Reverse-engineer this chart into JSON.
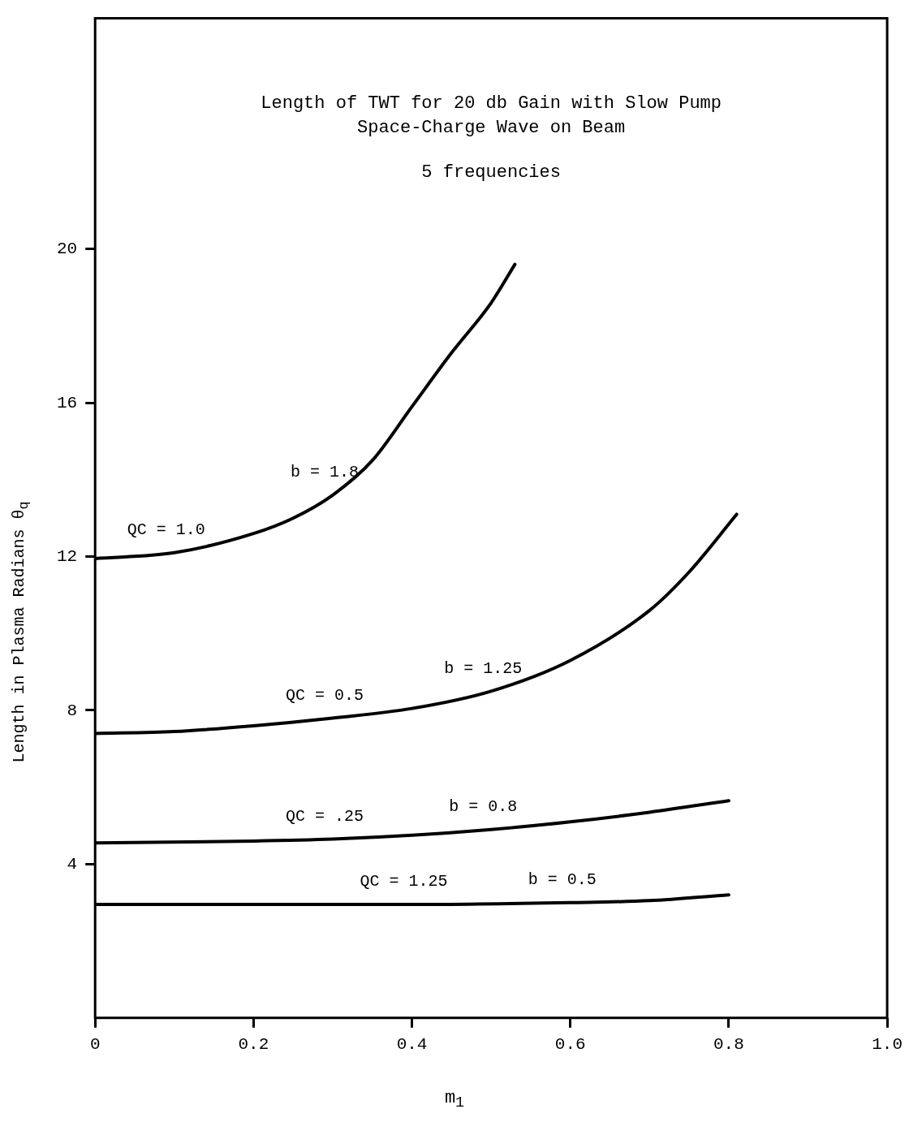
{
  "chart_data": {
    "type": "line",
    "title": "Length of TWT for 20 db Gain with Slow Pump\nSpace-Charge Wave on Beam",
    "subtitle": "5 frequencies",
    "xlabel": "m$_{1}$",
    "ylabel": "Length in Plasma Radians θ$_{q}$",
    "xlim": [
      0,
      1.0
    ],
    "xticks": [
      {
        "value": 0,
        "label": "0"
      },
      0.2,
      0.4,
      0.6,
      0.8,
      {
        "value": 1,
        "label": "1.0"
      }
    ],
    "ylim": [
      0,
      26
    ],
    "yticks": [
      4,
      8,
      12,
      16,
      20
    ],
    "marker": "none",
    "line_style": "solid",
    "legend": false,
    "series": [
      {
        "color": "#000000",
        "x": [
          0,
          0.1,
          0.2,
          0.25,
          0.3,
          0.35,
          0.4,
          0.45,
          0.5,
          0.53
        ],
        "values": [
          11.95,
          12.1,
          12.6,
          13.0,
          13.6,
          14.5,
          15.9,
          17.3,
          18.6,
          19.6
        ]
      },
      {
        "color": "#000000",
        "x": [
          0,
          0.1,
          0.2,
          0.3,
          0.4,
          0.5,
          0.6,
          0.7,
          0.75,
          0.81
        ],
        "values": [
          7.4,
          7.45,
          7.6,
          7.8,
          8.05,
          8.5,
          9.3,
          10.6,
          11.6,
          13.1
        ]
      },
      {
        "color": "#000000",
        "x": [
          0,
          0.2,
          0.3,
          0.4,
          0.5,
          0.6,
          0.7,
          0.8
        ],
        "values": [
          4.55,
          4.6,
          4.65,
          4.75,
          4.9,
          5.1,
          5.35,
          5.65
        ]
      },
      {
        "color": "#000000",
        "x": [
          0,
          0.2,
          0.4,
          0.6,
          0.7,
          0.8
        ],
        "values": [
          2.95,
          2.95,
          2.95,
          3.0,
          3.05,
          3.2
        ]
      }
    ],
    "annotations": [
      {
        "text": "QC = 1.0",
        "x": 0.1,
        "y": 12.1
      },
      {
        "text": "b = 1.8",
        "x": 0.3,
        "y": 13.6
      },
      {
        "text": "QC = 0.5",
        "x": 0.3,
        "y": 7.8
      },
      {
        "text": "b = 1.25",
        "x": 0.5,
        "y": 8.5
      },
      {
        "text": "QC = .25",
        "x": 0.3,
        "y": 4.65
      },
      {
        "text": "b = 0.8",
        "x": 0.5,
        "y": 4.9
      },
      {
        "text": "QC = 1.25",
        "x": 0.4,
        "y": 2.95
      },
      {
        "text": "b = 0.5",
        "x": 0.6,
        "y": 3.0
      }
    ]
  }
}
